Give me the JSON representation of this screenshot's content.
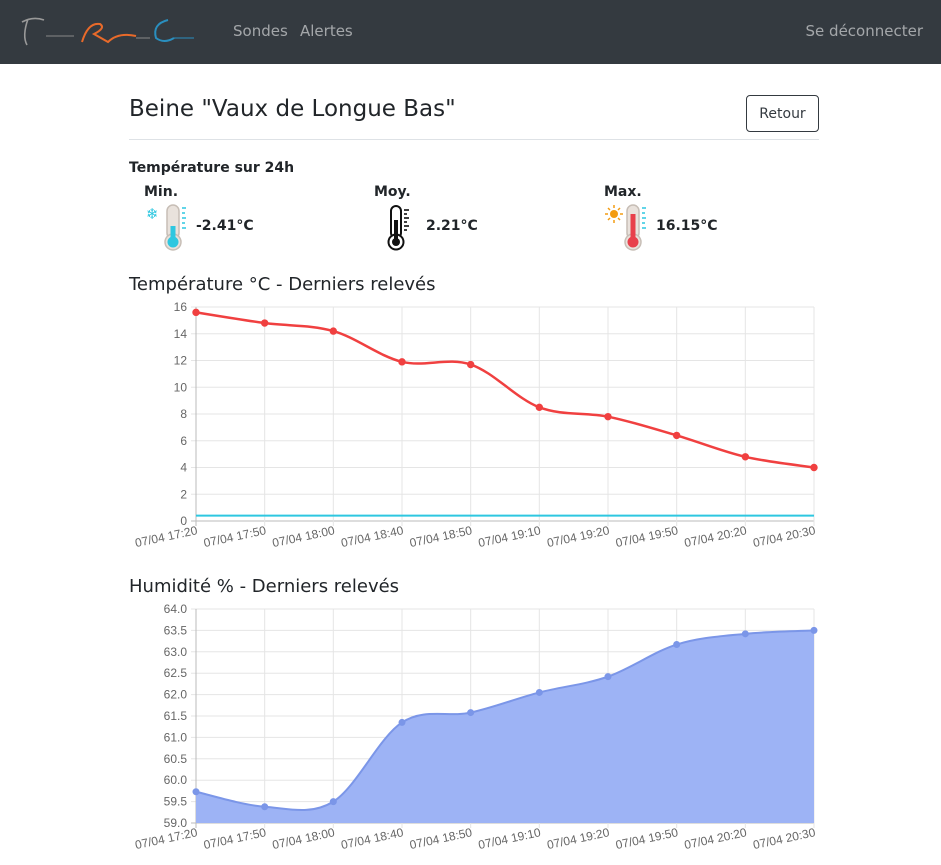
{
  "navbar": {
    "links": {
      "sondes": "Sondes",
      "alertes": "Alertes"
    },
    "logout": "Se déconnecter"
  },
  "page": {
    "title": "Beine \"Vaux de Longue Bas\"",
    "back_button": "Retour"
  },
  "stats": {
    "title": "Température sur 24h",
    "min": {
      "label": "Min.",
      "value": "-2.41°C",
      "icon": "thermometer-cold-icon"
    },
    "avg": {
      "label": "Moy.",
      "value": "2.21°C",
      "icon": "thermometer-icon"
    },
    "max": {
      "label": "Max.",
      "value": "16.15°C",
      "icon": "thermometer-hot-icon"
    }
  },
  "colors": {
    "temperature": "#f04040",
    "threshold": "#2ec7e0",
    "humidity_fill": "#9db3f5",
    "humidity_line": "#7b96e8",
    "navbar": "#343a40"
  },
  "chart_data": [
    {
      "type": "line",
      "title": "Température °C - Derniers relevés",
      "categories": [
        "07/04 17:20",
        "07/04 17:50",
        "07/04 18:00",
        "07/04 18:40",
        "07/04 18:50",
        "07/04 19:10",
        "07/04 19:20",
        "07/04 19:50",
        "07/04 20:20",
        "07/04 20:30"
      ],
      "series": [
        {
          "values": [
            15.6,
            14.8,
            14.2,
            11.9,
            11.7,
            8.5,
            7.8,
            6.4,
            4.8,
            4.0
          ]
        },
        {
          "values": [
            0.4,
            0.4,
            0.4,
            0.4,
            0.4,
            0.4,
            0.4,
            0.4,
            0.4,
            0.4
          ]
        }
      ],
      "yticks": [
        "0",
        "2",
        "4",
        "6",
        "8",
        "10",
        "12",
        "14",
        "16"
      ],
      "ylim": [
        0,
        16
      ],
      "grid": true
    },
    {
      "type": "area",
      "title": "Humidité % - Derniers relevés",
      "categories": [
        "07/04 17:20",
        "07/04 17:50",
        "07/04 18:00",
        "07/04 18:40",
        "07/04 18:50",
        "07/04 19:10",
        "07/04 19:20",
        "07/04 19:50",
        "07/04 20:20",
        "07/04 20:30"
      ],
      "series": [
        {
          "values": [
            59.73,
            59.38,
            59.5,
            61.35,
            61.58,
            62.05,
            62.42,
            63.17,
            63.42,
            63.5
          ]
        }
      ],
      "yticks": [
        "59.0",
        "59.5",
        "60.0",
        "60.5",
        "61.0",
        "61.5",
        "62.0",
        "62.5",
        "63.0",
        "63.5",
        "64.0"
      ],
      "ylim": [
        59,
        64
      ],
      "grid": true
    }
  ]
}
